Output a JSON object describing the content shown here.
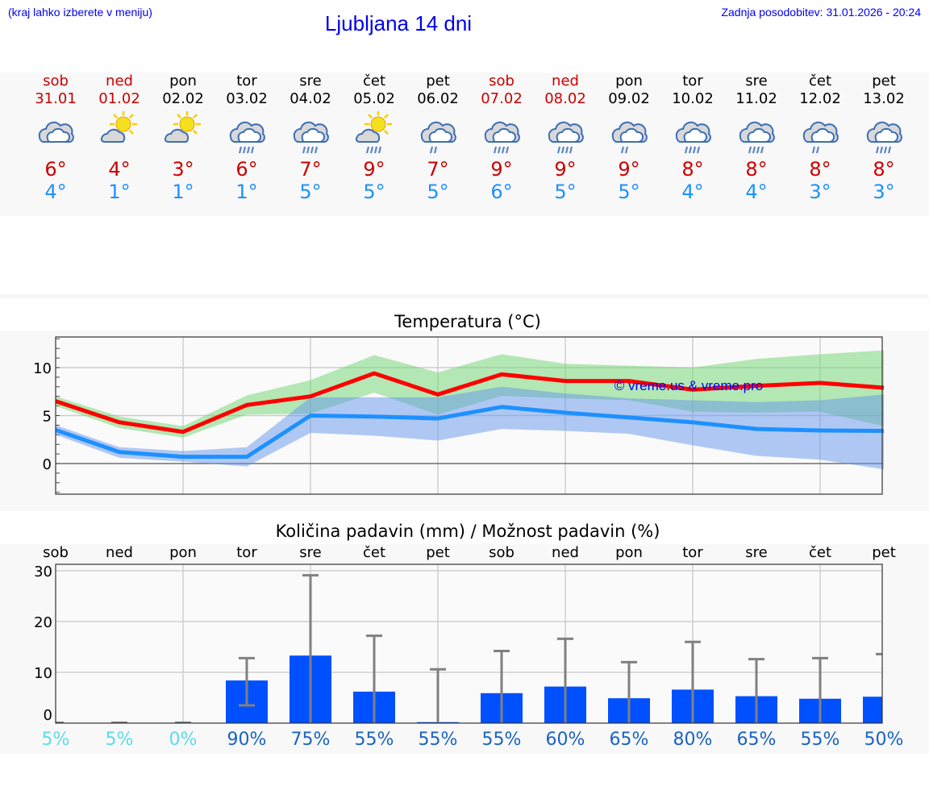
{
  "header": {
    "hint": "(kraj lahko izberete v meniju)",
    "title": "Ljubljana 14 dni",
    "updated": "Zadnja posodobitev: 31.01.2026 - 20:24"
  },
  "colors": {
    "weekend": "#cc0000",
    "max": "#ff0000",
    "min": "#1e90ff",
    "bar": "#0050ff",
    "pct_low": "#5ddbe8",
    "pct_high": "#1a63c0"
  },
  "days": [
    {
      "name": "sob",
      "date": "31.01",
      "weekend": true,
      "icon": "cloudy",
      "max": "6°",
      "min": "4°"
    },
    {
      "name": "ned",
      "date": "01.02",
      "weekend": true,
      "icon": "partly-sunny",
      "max": "4°",
      "min": "1°"
    },
    {
      "name": "pon",
      "date": "02.02",
      "weekend": false,
      "icon": "partly-sunny",
      "max": "3°",
      "min": "1°"
    },
    {
      "name": "tor",
      "date": "03.02",
      "weekend": false,
      "icon": "rain",
      "max": "6°",
      "min": "1°"
    },
    {
      "name": "sre",
      "date": "04.02",
      "weekend": false,
      "icon": "rain",
      "max": "7°",
      "min": "5°"
    },
    {
      "name": "čet",
      "date": "05.02",
      "weekend": false,
      "icon": "sun-rain",
      "max": "9°",
      "min": "5°"
    },
    {
      "name": "pet",
      "date": "06.02",
      "weekend": false,
      "icon": "light-rain",
      "max": "7°",
      "min": "5°"
    },
    {
      "name": "sob",
      "date": "07.02",
      "weekend": true,
      "icon": "rain",
      "max": "9°",
      "min": "6°"
    },
    {
      "name": "ned",
      "date": "08.02",
      "weekend": true,
      "icon": "rain",
      "max": "9°",
      "min": "5°"
    },
    {
      "name": "pon",
      "date": "09.02",
      "weekend": false,
      "icon": "light-rain",
      "max": "9°",
      "min": "5°"
    },
    {
      "name": "tor",
      "date": "10.02",
      "weekend": false,
      "icon": "rain",
      "max": "8°",
      "min": "4°"
    },
    {
      "name": "sre",
      "date": "11.02",
      "weekend": false,
      "icon": "rain",
      "max": "8°",
      "min": "4°"
    },
    {
      "name": "čet",
      "date": "12.02",
      "weekend": false,
      "icon": "light-rain",
      "max": "8°",
      "min": "3°"
    },
    {
      "name": "pet",
      "date": "13.02",
      "weekend": false,
      "icon": "rain",
      "max": "8°",
      "min": "3°"
    }
  ],
  "chart_data": [
    {
      "type": "line",
      "title": "Temperatura (°C)",
      "watermark": "© vreme.us & vreme.pro",
      "ylim": [
        -3.2,
        13.2
      ],
      "yticks": [
        0,
        5,
        10
      ],
      "grid": true,
      "series": [
        {
          "role": "max",
          "values": [
            6.5,
            4.3,
            3.3,
            6.1,
            7.0,
            9.4,
            7.2,
            9.3,
            8.6,
            8.6,
            7.7,
            8.1,
            8.4,
            7.9
          ],
          "band_upper": [
            7.0,
            4.9,
            3.9,
            7.1,
            8.7,
            11.3,
            9.5,
            11.4,
            10.4,
            10.2,
            10.0,
            10.9,
            11.4,
            11.8
          ],
          "band_lower": [
            6.0,
            3.7,
            2.7,
            5.1,
            5.2,
            7.4,
            5.1,
            7.05,
            6.8,
            6.6,
            5.4,
            5.3,
            5.4,
            3.9
          ]
        },
        {
          "role": "min",
          "values": [
            3.5,
            1.2,
            0.7,
            0.7,
            5.0,
            4.9,
            4.7,
            5.9,
            5.3,
            4.8,
            4.3,
            3.6,
            3.45,
            3.4
          ],
          "band_upper": [
            4.0,
            1.7,
            1.3,
            1.7,
            6.9,
            6.9,
            6.9,
            8.0,
            7.3,
            6.8,
            6.6,
            6.4,
            6.6,
            7.2
          ],
          "band_lower": [
            3.0,
            0.6,
            0.2,
            -0.3,
            3.2,
            2.9,
            2.4,
            3.6,
            3.4,
            3.1,
            1.9,
            0.8,
            0.4,
            -0.6
          ]
        }
      ]
    },
    {
      "type": "bar",
      "title": "Količina padavin (mm) / Možnost padavin (%)",
      "categories": [
        "sob",
        "ned",
        "pon",
        "tor",
        "sre",
        "čet",
        "pet",
        "sob",
        "ned",
        "pon",
        "tor",
        "sre",
        "čet",
        "pet"
      ],
      "ylim": [
        0,
        31
      ],
      "yticks": [
        0,
        10,
        20,
        30
      ],
      "values": [
        0,
        0,
        0,
        8.4,
        13.3,
        6.2,
        0.2,
        5.9,
        7.2,
        4.9,
        6.6,
        5.3,
        4.8,
        5.2
      ],
      "err_low": [
        0,
        0,
        0,
        3.5,
        0,
        0,
        0,
        0,
        0,
        0,
        0,
        0,
        0,
        0
      ],
      "err_high": [
        0,
        0,
        0,
        12.8,
        29.1,
        17.2,
        10.6,
        14.2,
        16.6,
        12.0,
        16.0,
        12.6,
        12.8,
        13.6
      ],
      "probability": [
        "5%",
        "5%",
        "0%",
        "90%",
        "75%",
        "55%",
        "55%",
        "55%",
        "60%",
        "65%",
        "80%",
        "65%",
        "55%",
        "50%"
      ]
    }
  ]
}
